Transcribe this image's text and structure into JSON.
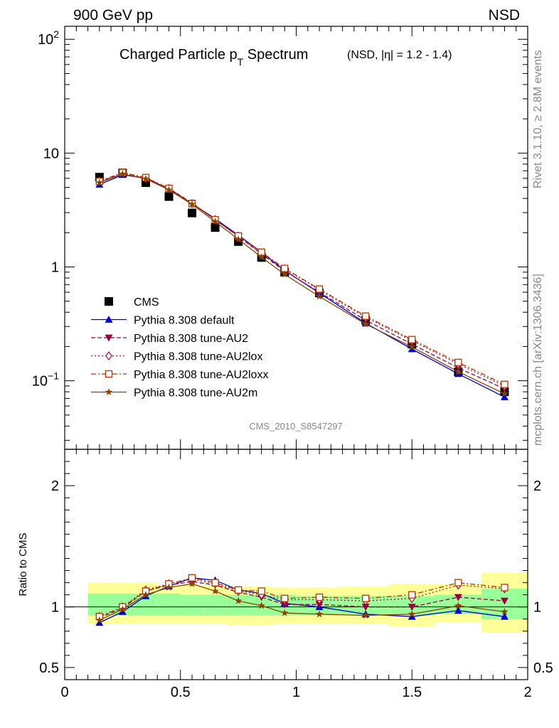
{
  "header": {
    "left": "900 GeV pp",
    "right": "NSD"
  },
  "side": {
    "rivet": "Rivet 3.1.10, ≥ 2.8M events",
    "mcplots": "mcplots.cern.ch [arXiv:1306.3436]"
  },
  "title": {
    "main": "Charged Particle p",
    "sub": "T",
    "main2": " Spectrum",
    "cond": "(NSD, |η| = 1.2 - 1.4)"
  },
  "analysis_id": "CMS_2010_S8547297",
  "chart_data": [
    {
      "type": "scatter",
      "panel": "main",
      "yscale": "log",
      "xlim": [
        0,
        2
      ],
      "ylim": [
        0.025,
        130
      ],
      "yticks": [
        {
          "value": 100,
          "base": "10",
          "exp": "2"
        },
        {
          "value": 10,
          "base": "10",
          "exp": ""
        },
        {
          "value": 1,
          "base": "1",
          "exp": ""
        },
        {
          "value": 0.1,
          "base": "10",
          "exp": "−1"
        }
      ],
      "x": [
        0.15,
        0.25,
        0.35,
        0.45,
        0.55,
        0.65,
        0.75,
        0.85,
        0.95,
        1.1,
        1.3,
        1.5,
        1.7,
        1.9
      ],
      "series": [
        {
          "name": "CMS",
          "color": "#000000",
          "marker": "square",
          "line": "none",
          "values": [
            6.15,
            6.7,
            5.5,
            4.15,
            2.98,
            2.22,
            1.67,
            1.21,
            0.9,
            0.59,
            0.34,
            0.21,
            0.12,
            0.08
          ]
        },
        {
          "name": "Pythia 8.308 default",
          "color": "#0000cc",
          "marker": "triangle-up",
          "line": "solid",
          "values": [
            5.3,
            6.45,
            6.0,
            4.85,
            3.6,
            2.65,
            1.9,
            1.35,
            0.93,
            0.59,
            0.32,
            0.19,
            0.115,
            0.072
          ]
        },
        {
          "name": "Pythia 8.308 tune-AU2",
          "color": "#990044",
          "marker": "triangle-down",
          "line": "dashed",
          "values": [
            5.6,
            6.6,
            6.0,
            4.9,
            3.65,
            2.6,
            1.85,
            1.3,
            0.92,
            0.6,
            0.34,
            0.21,
            0.13,
            0.085
          ]
        },
        {
          "name": "Pythia 8.308 tune-AU2lox",
          "color": "#aa1133",
          "marker": "diamond",
          "line": "dotted",
          "values": [
            5.7,
            6.7,
            6.0,
            4.9,
            3.6,
            2.6,
            1.85,
            1.32,
            0.96,
            0.63,
            0.36,
            0.225,
            0.14,
            0.09
          ]
        },
        {
          "name": "Pythia 8.308 tune-AU2loxx",
          "color": "#bb3300",
          "marker": "square-open",
          "line": "dashdot",
          "values": [
            5.65,
            6.75,
            6.1,
            4.9,
            3.6,
            2.6,
            1.87,
            1.35,
            0.97,
            0.64,
            0.37,
            0.23,
            0.145,
            0.093
          ]
        },
        {
          "name": "Pythia 8.308 tune-AU2m",
          "color": "#884400",
          "marker": "star",
          "line": "solid",
          "values": [
            5.5,
            6.55,
            5.95,
            4.75,
            3.55,
            2.5,
            1.75,
            1.22,
            0.86,
            0.55,
            0.315,
            0.198,
            0.12,
            0.077
          ]
        }
      ]
    },
    {
      "type": "line",
      "panel": "ratio",
      "ylabel": "Ratio to CMS",
      "xlim": [
        0,
        2
      ],
      "ylim": [
        0.4,
        2.3
      ],
      "yticks": [
        0.5,
        1,
        2
      ],
      "xticks": [
        0,
        0.5,
        1,
        1.5,
        2
      ],
      "x": [
        0.15,
        0.25,
        0.35,
        0.45,
        0.55,
        0.65,
        0.75,
        0.85,
        0.95,
        1.1,
        1.3,
        1.5,
        1.7,
        1.9
      ],
      "bins": [
        [
          0.1,
          0.2
        ],
        [
          0.2,
          0.3
        ],
        [
          0.3,
          0.4
        ],
        [
          0.4,
          0.5
        ],
        [
          0.5,
          0.6
        ],
        [
          0.6,
          0.7
        ],
        [
          0.7,
          0.8
        ],
        [
          0.8,
          0.9
        ],
        [
          0.9,
          1.0
        ],
        [
          1.0,
          1.2
        ],
        [
          1.2,
          1.4
        ],
        [
          1.4,
          1.6
        ],
        [
          1.6,
          1.8
        ],
        [
          1.8,
          2.0
        ]
      ],
      "band_outer": [
        [
          0.86,
          1.2
        ],
        [
          0.86,
          1.2
        ],
        [
          0.86,
          1.2
        ],
        [
          0.86,
          1.18
        ],
        [
          0.86,
          1.18
        ],
        [
          0.86,
          1.18
        ],
        [
          0.85,
          1.17
        ],
        [
          0.85,
          1.17
        ],
        [
          0.86,
          1.16
        ],
        [
          0.86,
          1.16
        ],
        [
          0.86,
          1.17
        ],
        [
          0.84,
          1.19
        ],
        [
          0.87,
          1.19
        ],
        [
          0.79,
          1.28
        ]
      ],
      "band_inner": [
        [
          0.93,
          1.11
        ],
        [
          0.93,
          1.11
        ],
        [
          0.93,
          1.11
        ],
        [
          0.93,
          1.11
        ],
        [
          0.93,
          1.1
        ],
        [
          0.93,
          1.1
        ],
        [
          0.93,
          1.1
        ],
        [
          0.93,
          1.1
        ],
        [
          0.93,
          1.1
        ],
        [
          0.93,
          1.09
        ],
        [
          0.93,
          1.09
        ],
        [
          0.93,
          1.09
        ],
        [
          0.94,
          1.1
        ],
        [
          0.9,
          1.15
        ]
      ],
      "series": [
        {
          "name": "Pythia 8.308 default",
          "values": [
            0.87,
            0.96,
            1.09,
            1.17,
            1.24,
            1.22,
            1.14,
            1.11,
            1.03,
            1.0,
            0.94,
            0.92,
            0.97,
            0.92
          ]
        },
        {
          "name": "Pythia 8.308 tune-AU2",
          "values": [
            0.91,
            0.99,
            1.13,
            1.18,
            1.21,
            1.18,
            1.12,
            1.08,
            1.02,
            1.02,
            1.0,
            1.0,
            1.08,
            1.05
          ]
        },
        {
          "name": "Pythia 8.308 tune-AU2lox",
          "values": [
            0.92,
            1.0,
            1.14,
            1.19,
            1.23,
            1.19,
            1.13,
            1.1,
            1.06,
            1.06,
            1.05,
            1.07,
            1.18,
            1.15
          ]
        },
        {
          "name": "Pythia 8.308 tune-AU2loxx",
          "values": [
            0.92,
            1.0,
            1.13,
            1.19,
            1.24,
            1.2,
            1.14,
            1.13,
            1.07,
            1.08,
            1.07,
            1.1,
            1.2,
            1.16
          ]
        },
        {
          "name": "Pythia 8.308 tune-AU2m",
          "values": [
            0.89,
            0.98,
            1.1,
            1.16,
            1.19,
            1.13,
            1.05,
            1.01,
            0.95,
            0.94,
            0.93,
            0.94,
            1.01,
            0.96
          ]
        }
      ]
    }
  ]
}
